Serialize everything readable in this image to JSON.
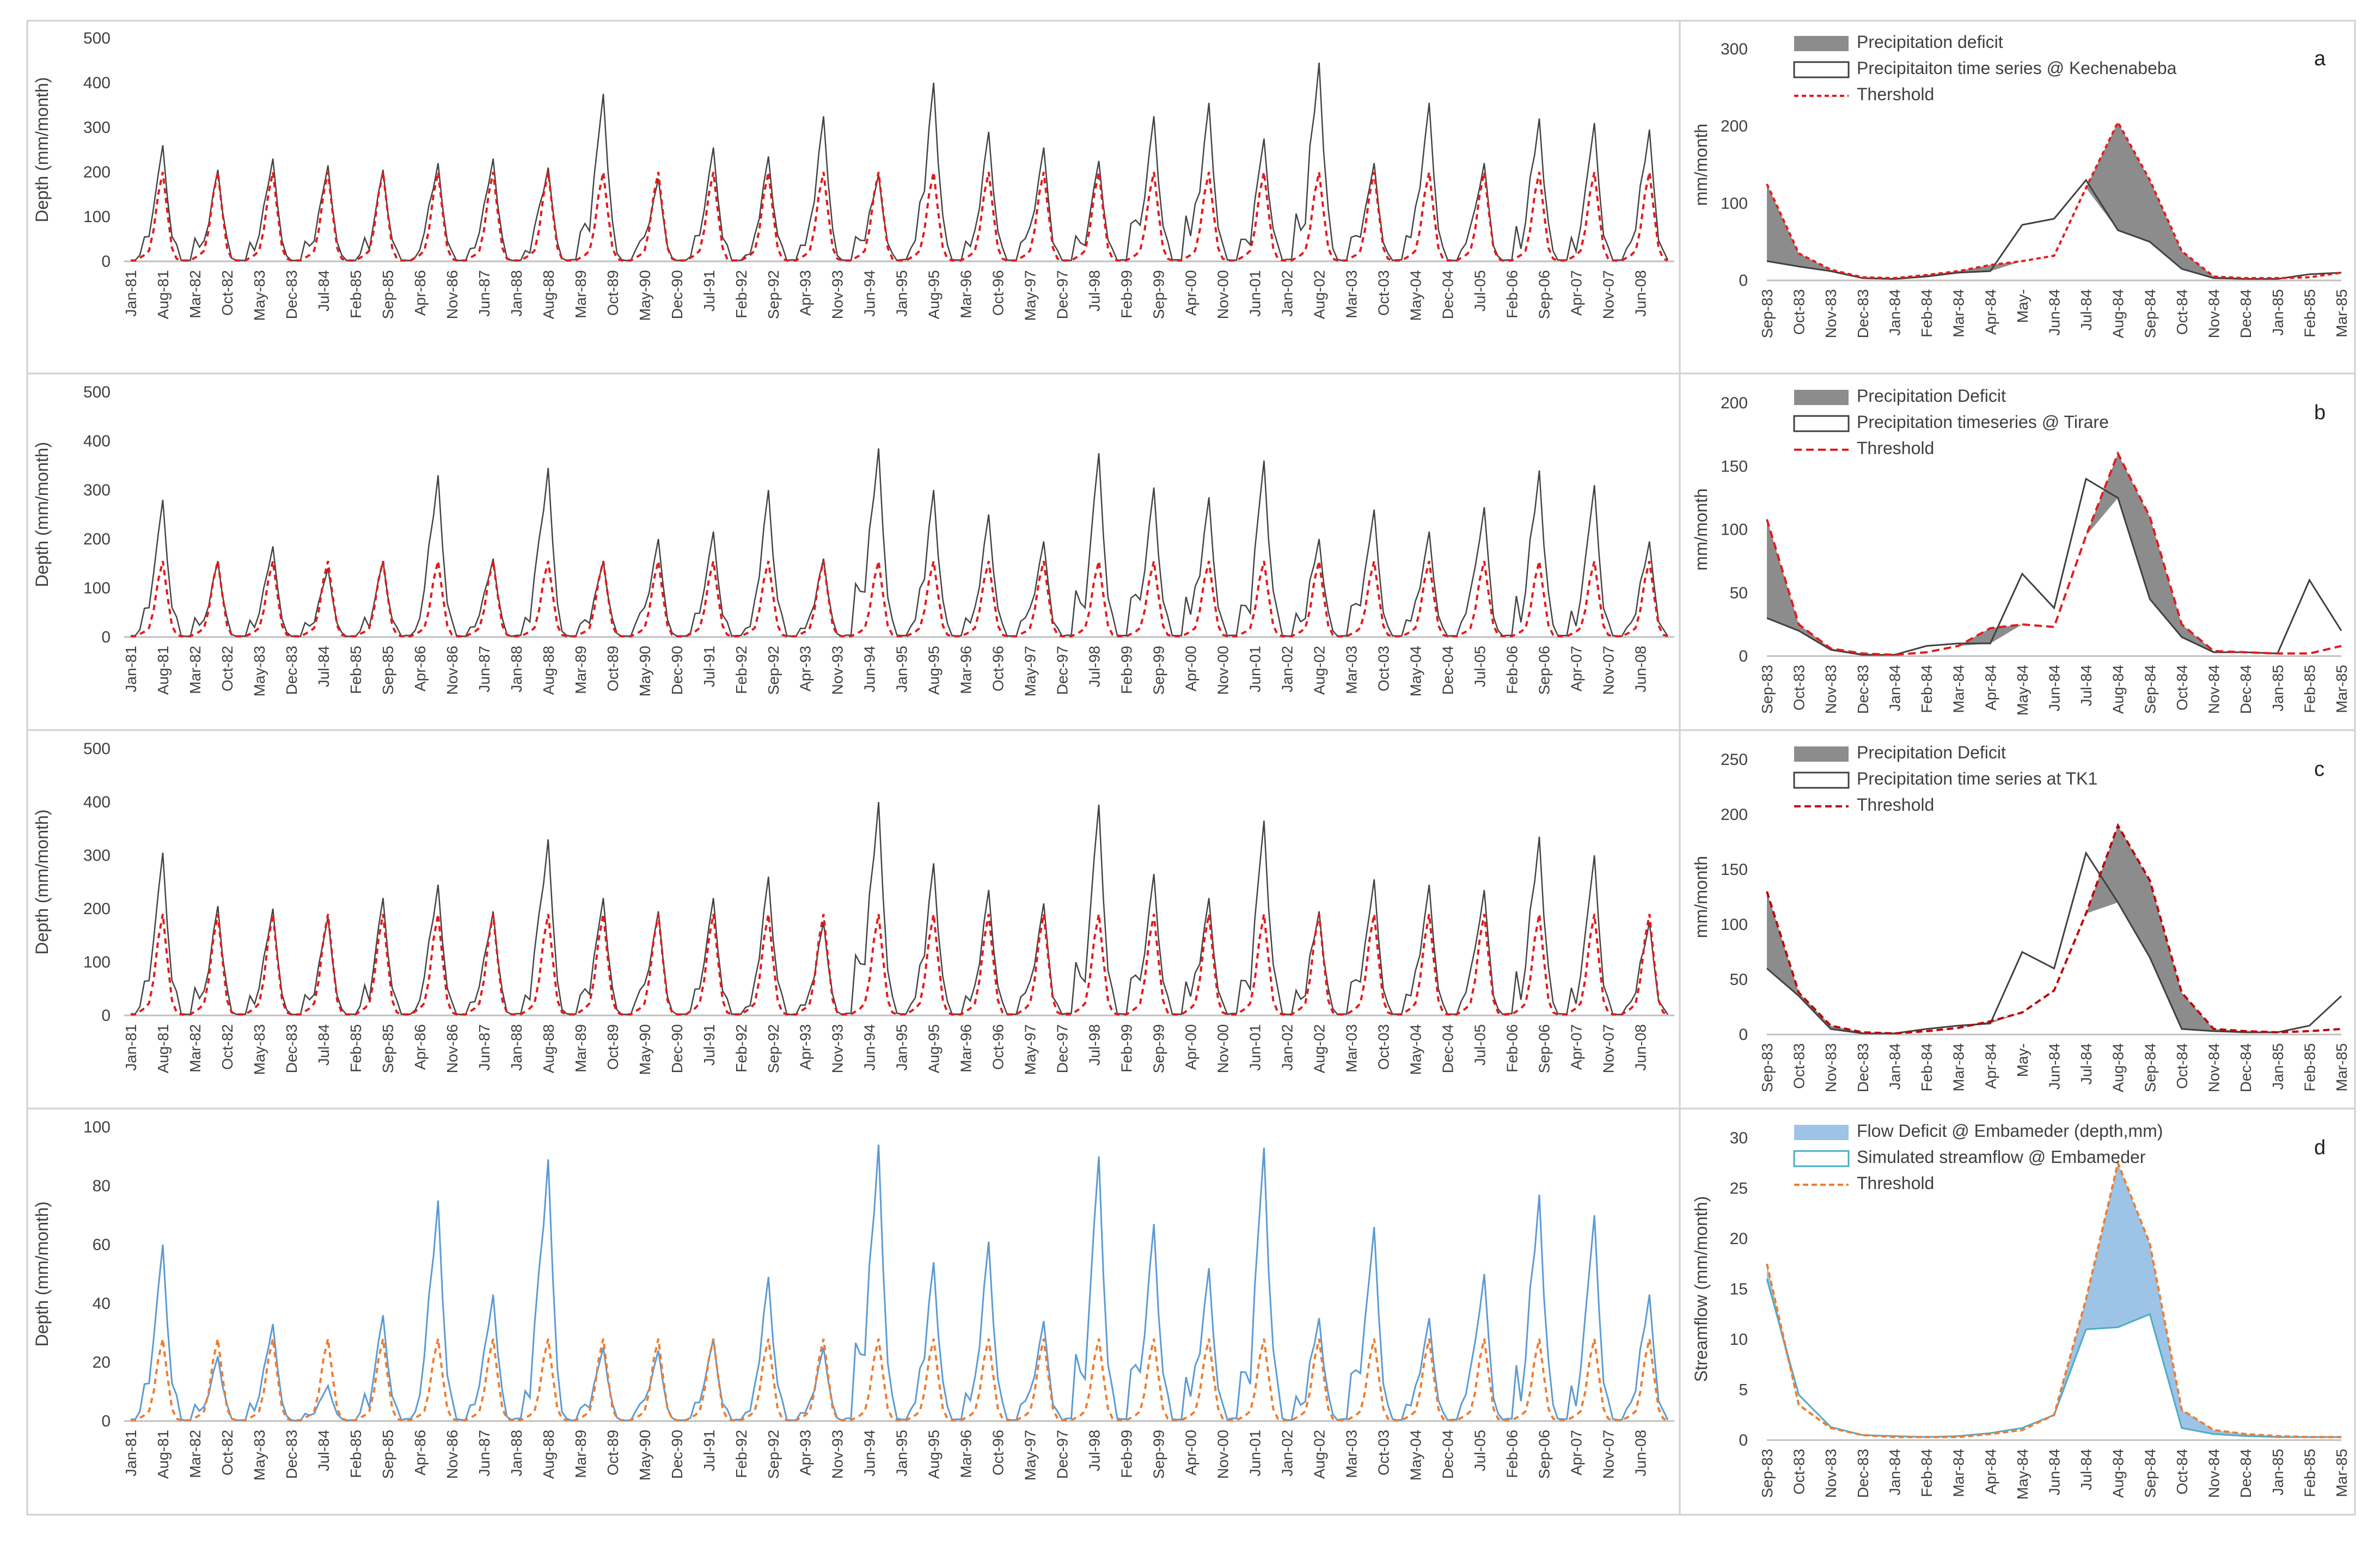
{
  "chart_data": [
    {
      "id": "a-long",
      "type": "line",
      "ylabel": "Depth (mm/month)",
      "ylim": [
        0,
        500
      ],
      "yticks": [
        0,
        100,
        200,
        300,
        400,
        500
      ],
      "xtick_labels": [
        "Jan-81",
        "Aug-81",
        "Mar-82",
        "Oct-82",
        "May-83",
        "Dec-83",
        "Jul-84",
        "Feb-85",
        "Sep-85",
        "Apr-86",
        "Nov-86",
        "Jun-87",
        "Jan-88",
        "Aug-88",
        "Mar-89",
        "Oct-89",
        "May-90",
        "Dec-90",
        "Jul-91",
        "Feb-92",
        "Sep-92",
        "Apr-93",
        "Nov-93",
        "Jun-94",
        "Jan-95",
        "Aug-95",
        "Mar-96",
        "Oct-96",
        "May-97",
        "Dec-97",
        "Jul-98",
        "Feb-99",
        "Sep-99",
        "Apr-00",
        "Nov-00",
        "Jun-01",
        "Jan-02",
        "Aug-02",
        "Mar-03",
        "Oct-03",
        "May-04",
        "Dec-04",
        "Jul-05",
        "Feb-06",
        "Sep-06",
        "Apr-07",
        "Nov-07",
        "Jun-08"
      ],
      "annual_peaks": [
        260,
        205,
        230,
        215,
        205,
        220,
        230,
        210,
        375,
        185,
        255,
        235,
        325,
        195,
        400,
        290,
        255,
        225,
        325,
        355,
        275,
        445,
        220,
        355,
        220,
        320,
        310,
        295
      ],
      "threshold_peak": 200
    },
    {
      "id": "a-short",
      "type": "area",
      "panel_letter": "a",
      "ylabel": "mm/month",
      "ylim": [
        0,
        300
      ],
      "yticks": [
        0,
        100,
        200,
        300
      ],
      "legend": [
        "Precipitation deficit",
        "Precipitaiton time series @ Kechenabeba",
        "Thershold"
      ],
      "categories": [
        "Sep-83",
        "Oct-83",
        "Nov-83",
        "Dec-83",
        "Jan-84",
        "Feb-84",
        "Mar-84",
        "Apr-84",
        "May-84",
        "Jun-84",
        "Jul-84",
        "Aug-84",
        "Sep-84",
        "Oct-84",
        "Nov-84",
        "Dec-84",
        "Jan-85",
        "Feb-85",
        "Mar-85"
      ],
      "category_labels": [
        "Sep-83",
        "Oct-83",
        "Nov-83",
        "Dec-83",
        "Jan-84",
        "Feb-84",
        "Mar-84",
        "Apr-84",
        "May-",
        "Jun-84",
        "Jul-84",
        "Aug-84",
        "Sep-84",
        "Oct-84",
        "Nov-84",
        "Dec-84",
        "Jan-85",
        "Feb-85",
        "Mar-85"
      ],
      "series": [
        {
          "name": "Precipitaiton time series @ Kechenabeba",
          "values": [
            25,
            18,
            12,
            3,
            2,
            5,
            10,
            12,
            72,
            80,
            130,
            65,
            50,
            15,
            3,
            2,
            2,
            8,
            10
          ]
        },
        {
          "name": "Thershold",
          "values": [
            125,
            35,
            14,
            4,
            3,
            7,
            12,
            20,
            25,
            32,
            120,
            205,
            130,
            38,
            5,
            3,
            3,
            4,
            10
          ]
        }
      ]
    },
    {
      "id": "b-long",
      "type": "line",
      "ylabel": "Depth (mm/month)",
      "ylim": [
        0,
        500
      ],
      "yticks": [
        0,
        100,
        200,
        300,
        400,
        500
      ],
      "xtick_labels": [
        "Jan-81",
        "Aug-81",
        "Mar-82",
        "Oct-82",
        "May-83",
        "Dec-83",
        "Jul-84",
        "Feb-85",
        "Sep-85",
        "Apr-86",
        "Nov-86",
        "Jun-87",
        "Jan-88",
        "Aug-88",
        "Mar-89",
        "Oct-89",
        "May-90",
        "Dec-90",
        "Jul-91",
        "Feb-92",
        "Sep-92",
        "Apr-93",
        "Nov-93",
        "Jun-94",
        "Jan-95",
        "Aug-95",
        "Mar-96",
        "Oct-96",
        "May-97",
        "Dec-97",
        "Jul-98",
        "Feb-99",
        "Sep-99",
        "Apr-00",
        "Nov-00",
        "Jun-01",
        "Jan-02",
        "Aug-02",
        "Mar-03",
        "Oct-03",
        "May-04",
        "Dec-04",
        "Jul-05",
        "Feb-06",
        "Sep-06",
        "Apr-07",
        "Nov-07",
        "Jun-08"
      ],
      "annual_peaks": [
        280,
        155,
        185,
        140,
        155,
        330,
        160,
        345,
        155,
        200,
        215,
        300,
        160,
        385,
        300,
        250,
        195,
        375,
        305,
        285,
        360,
        200,
        260,
        215,
        265,
        340,
        310,
        195
      ],
      "threshold_peak": 155
    },
    {
      "id": "b-short",
      "type": "area",
      "panel_letter": "b",
      "ylabel": "mm/month",
      "ylim": [
        0,
        200
      ],
      "yticks": [
        0,
        50,
        100,
        150,
        200
      ],
      "legend": [
        "Precipitation Deficit",
        "Precipitation timeseries @ Tirare",
        "Threshold"
      ],
      "categories": [
        "Sep-83",
        "Oct-83",
        "Nov-83",
        "Dec-83",
        "Jan-84",
        "Feb-84",
        "Mar-84",
        "Apr-84",
        "May-84",
        "Jun-84",
        "Jul-84",
        "Aug-84",
        "Sep-84",
        "Oct-84",
        "Nov-84",
        "Dec-84",
        "Jan-85",
        "Feb-85",
        "Mar-85"
      ],
      "category_labels": [
        "Sep-83",
        "Oct-83",
        "Nov-83",
        "Dec-83",
        "Jan-84",
        "Feb-84",
        "Mar-84",
        "Apr-84",
        "May-84",
        "Jun-84",
        "Jul-84",
        "Aug-84",
        "Sep-84",
        "Oct-84",
        "Nov-84",
        "Dec-84",
        "Jan-85",
        "Feb-85",
        "Mar-85"
      ],
      "series": [
        {
          "name": "Precipitation timeseries @ Tirare",
          "values": [
            30,
            20,
            5,
            1,
            1,
            8,
            10,
            10,
            65,
            38,
            140,
            125,
            45,
            15,
            3,
            3,
            2,
            60,
            20
          ]
        },
        {
          "name": "Threshold",
          "values": [
            108,
            25,
            6,
            2,
            1,
            3,
            8,
            22,
            25,
            23,
            95,
            160,
            110,
            25,
            4,
            3,
            2,
            2,
            8
          ]
        }
      ]
    },
    {
      "id": "c-long",
      "type": "line",
      "ylabel": "Depth (mm/month)",
      "ylim": [
        0,
        500
      ],
      "yticks": [
        0,
        100,
        200,
        300,
        400,
        500
      ],
      "xtick_labels": [
        "Jan-81",
        "Aug-81",
        "Mar-82",
        "Oct-82",
        "May-83",
        "Dec-83",
        "Jul-84",
        "Feb-85",
        "Sep-85",
        "Apr-86",
        "Nov-86",
        "Jun-87",
        "Jan-88",
        "Aug-88",
        "Mar-89",
        "Oct-89",
        "May-90",
        "Dec-90",
        "Jul-91",
        "Feb-92",
        "Sep-92",
        "Apr-93",
        "Nov-93",
        "Jun-94",
        "Jan-95",
        "Aug-95",
        "Mar-96",
        "Oct-96",
        "May-97",
        "Dec-97",
        "Jul-98",
        "Feb-99",
        "Sep-99",
        "Apr-00",
        "Nov-00",
        "Jun-01",
        "Jan-02",
        "Aug-02",
        "Mar-03",
        "Oct-03",
        "May-04",
        "Dec-04",
        "Jul-05",
        "Feb-06",
        "Sep-06",
        "Apr-07",
        "Nov-07",
        "Jun-08"
      ],
      "annual_peaks": [
        305,
        205,
        200,
        185,
        220,
        245,
        195,
        330,
        220,
        195,
        220,
        260,
        175,
        400,
        285,
        235,
        210,
        395,
        265,
        220,
        365,
        195,
        255,
        245,
        235,
        335,
        300,
        175
      ],
      "threshold_peak": 190
    },
    {
      "id": "c-short",
      "type": "area",
      "panel_letter": "c",
      "ylabel": "mm/month",
      "ylim": [
        0,
        250
      ],
      "yticks": [
        0,
        50,
        100,
        150,
        200,
        250
      ],
      "legend": [
        "Precipitation Deficit",
        "Precipitation time series at TK1",
        "Threshold"
      ],
      "categories": [
        "Sep-83",
        "Oct-83",
        "Nov-83",
        "Dec-83",
        "Jan-84",
        "Feb-84",
        "Mar-84",
        "Apr-84",
        "May-84",
        "Jun-84",
        "Jul-84",
        "Aug-84",
        "Sep-84",
        "Oct-84",
        "Nov-84",
        "Dec-84",
        "Jan-85",
        "Feb-85",
        "Mar-85"
      ],
      "category_labels": [
        "Sep-83",
        "Oct-83",
        "Nov-83",
        "Dec-83",
        "Jan-84",
        "Feb-84",
        "Mar-84",
        "Apr-84",
        "May-",
        "Jun-84",
        "Jul-84",
        "Aug-84",
        "Sep-84",
        "Oct-84",
        "Nov-84",
        "Dec-84",
        "Jan-85",
        "Feb-85",
        "Mar-85"
      ],
      "series": [
        {
          "name": "Precipitation time series at TK1",
          "values": [
            60,
            35,
            5,
            1,
            1,
            5,
            8,
            10,
            75,
            60,
            165,
            120,
            70,
            5,
            3,
            2,
            2,
            8,
            35
          ]
        },
        {
          "name": "Threshold",
          "values": [
            130,
            38,
            8,
            2,
            1,
            3,
            6,
            12,
            20,
            40,
            110,
            190,
            140,
            38,
            5,
            3,
            2,
            3,
            5
          ]
        }
      ]
    },
    {
      "id": "d-long",
      "type": "line",
      "ylabel": "Depth (mm/month)",
      "ylim": [
        0,
        100
      ],
      "yticks": [
        0,
        20,
        40,
        60,
        80,
        100
      ],
      "xtick_labels": [
        "Jan-81",
        "Aug-81",
        "Mar-82",
        "Oct-82",
        "May-83",
        "Dec-83",
        "Jul-84",
        "Feb-85",
        "Sep-85",
        "Apr-86",
        "Nov-86",
        "Jun-87",
        "Jan-88",
        "Aug-88",
        "Mar-89",
        "Oct-89",
        "May-90",
        "Dec-90",
        "Jul-91",
        "Feb-92",
        "Sep-92",
        "Apr-93",
        "Nov-93",
        "Jun-94",
        "Jan-95",
        "Aug-95",
        "Mar-96",
        "Oct-96",
        "May-97",
        "Dec-97",
        "Jul-98",
        "Feb-99",
        "Sep-99",
        "Apr-00",
        "Nov-00",
        "Jun-01",
        "Jan-02",
        "Aug-02",
        "Mar-03",
        "Oct-03",
        "May-04",
        "Dec-04",
        "Jul-05",
        "Feb-06",
        "Sep-06",
        "Apr-07",
        "Nov-07",
        "Jun-08"
      ],
      "annual_peaks": [
        60,
        22,
        33,
        12,
        36,
        75,
        43,
        89,
        25,
        24,
        28,
        49,
        25,
        94,
        54,
        61,
        34,
        90,
        67,
        52,
        93,
        35,
        66,
        35,
        50,
        77,
        70,
        43
      ],
      "threshold_peak": 28
    },
    {
      "id": "d-short",
      "type": "area",
      "panel_letter": "d",
      "ylabel": "Streamflow (mm/month)",
      "ylim": [
        0,
        30
      ],
      "yticks": [
        0,
        5,
        10,
        15,
        20,
        25,
        30
      ],
      "legend": [
        "Flow Deficit @ Embameder (depth,mm)",
        "Simulated streamflow @ Embameder",
        "Threshold"
      ],
      "categories": [
        "Sep-83",
        "Oct-83",
        "Nov-83",
        "Dec-83",
        "Jan-84",
        "Feb-84",
        "Mar-84",
        "Apr-84",
        "May-84",
        "Jun-84",
        "Jul-84",
        "Aug-84",
        "Sep-84",
        "Oct-84",
        "Nov-84",
        "Dec-84",
        "Jan-85",
        "Feb-85",
        "Mar-85"
      ],
      "category_labels": [
        "Sep-83",
        "Oct-83",
        "Nov-83",
        "Dec-83",
        "Jan-84",
        "Feb-84",
        "Mar-84",
        "Apr-84",
        "May-84",
        "Jun-84",
        "Jul-84",
        "Aug-84",
        "Sep-84",
        "Oct-84",
        "Nov-84",
        "Dec-84",
        "Jan-85",
        "Feb-85",
        "Mar-85"
      ],
      "series": [
        {
          "name": "Simulated streamflow @ Embameder",
          "values": [
            16,
            4.5,
            1.3,
            0.5,
            0.4,
            0.3,
            0.4,
            0.7,
            1.2,
            2.5,
            11,
            11.2,
            12.5,
            1.2,
            0.6,
            0.4,
            0.3,
            0.3,
            0.3
          ]
        },
        {
          "name": "Threshold",
          "values": [
            17.5,
            3.5,
            1.2,
            0.5,
            0.3,
            0.3,
            0.3,
            0.6,
            1,
            2.5,
            14,
            27.5,
            19.5,
            3,
            1,
            0.6,
            0.4,
            0.3,
            0.3
          ]
        }
      ]
    }
  ]
}
